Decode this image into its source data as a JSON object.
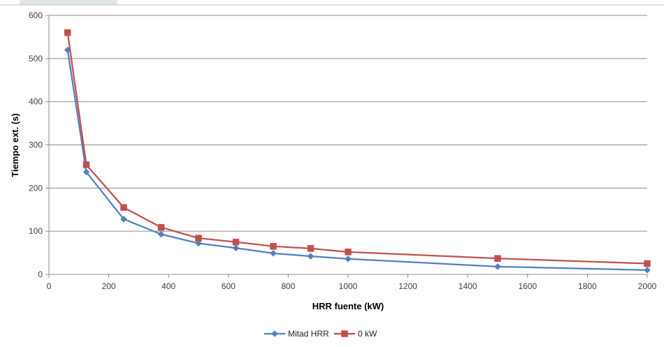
{
  "chart_data": {
    "type": "line",
    "xlabel": "HRR fuente (kW)",
    "ylabel": "Tiempo ext. (s)",
    "xlim": [
      0,
      2000
    ],
    "ylim": [
      0,
      600
    ],
    "x_ticks": [
      0,
      200,
      400,
      600,
      800,
      1000,
      1200,
      1400,
      1600,
      1800,
      2000
    ],
    "y_ticks": [
      0,
      100,
      200,
      300,
      400,
      500,
      600
    ],
    "grid": "horizontal",
    "legend_position": "bottom",
    "series": [
      {
        "name": "Mitad HRR",
        "color": "#4F81BD",
        "marker": "diamond",
        "x": [
          62.5,
          125,
          250,
          375,
          500,
          625,
          750,
          875,
          1000,
          1500,
          2000
        ],
        "y": [
          520,
          237,
          128,
          93,
          72,
          61,
          49,
          42,
          36,
          18,
          10
        ]
      },
      {
        "name": "0 kW",
        "color": "#C0504D",
        "marker": "square",
        "x": [
          62.5,
          125,
          250,
          375,
          500,
          625,
          750,
          875,
          1000,
          1500,
          2000
        ],
        "y": [
          560,
          254,
          155,
          109,
          84,
          75,
          65,
          60,
          52,
          37,
          25
        ]
      }
    ]
  }
}
